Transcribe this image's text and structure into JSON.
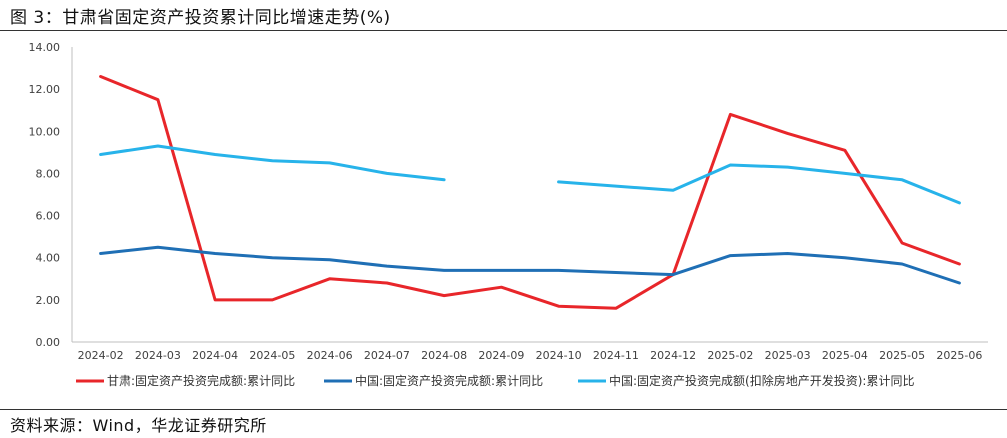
{
  "figure": {
    "title": "图 3：甘肃省固定资产投资累计同比增速走势(%)",
    "source": "资料来源：Wind，华龙证券研究所"
  },
  "chart_data": {
    "type": "line",
    "categories": [
      "2024-02",
      "2024-03",
      "2024-04",
      "2024-05",
      "2024-06",
      "2024-07",
      "2024-08",
      "2024-09",
      "2024-10",
      "2024-11",
      "2024-12",
      "2025-02",
      "2025-03",
      "2025-04",
      "2025-05",
      "2025-06"
    ],
    "ylim": [
      0,
      14
    ],
    "yticks": [
      "0.00",
      "2.00",
      "4.00",
      "6.00",
      "8.00",
      "10.00",
      "12.00",
      "14.00"
    ],
    "grid": false,
    "legend_position": "bottom",
    "series": [
      {
        "name": "甘肃:固定资产投资完成额:累计同比",
        "color": "#e8262a",
        "values": [
          12.6,
          11.5,
          2.0,
          2.0,
          3.0,
          2.8,
          2.2,
          2.6,
          1.7,
          1.6,
          3.2,
          10.8,
          9.9,
          9.1,
          4.7,
          3.7
        ]
      },
      {
        "name": "中国:固定资产投资完成额:累计同比",
        "color": "#1f6fb5",
        "values": [
          4.2,
          4.5,
          4.2,
          4.0,
          3.9,
          3.6,
          3.4,
          3.4,
          3.4,
          3.3,
          3.2,
          4.1,
          4.2,
          4.0,
          3.7,
          2.8
        ]
      },
      {
        "name": "中国:固定资产投资完成额(扣除房地产开发投资):累计同比",
        "color": "#27b3ea",
        "values": [
          8.9,
          9.3,
          8.9,
          8.6,
          8.5,
          8.0,
          7.7,
          null,
          7.6,
          7.4,
          7.2,
          8.4,
          8.3,
          8.0,
          7.7,
          6.6
        ]
      }
    ]
  }
}
